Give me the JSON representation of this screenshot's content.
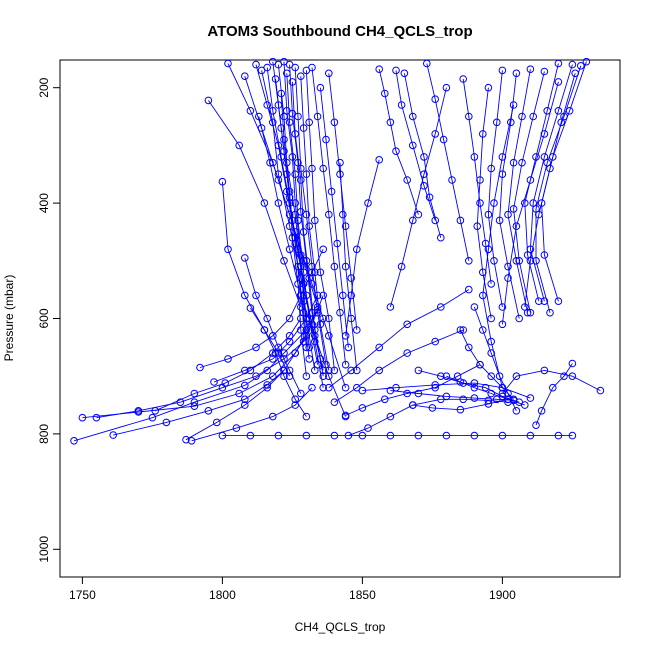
{
  "chart_data": {
    "type": "scatter",
    "title": "ATOM3 Southbound CH4_QCLS_trop",
    "xlabel": "CH4_QCLS_trop",
    "ylabel": "Pressure (mbar)",
    "xlim": [
      1742,
      1942
    ],
    "ylim": [
      1048,
      152
    ],
    "y_axis_reversed": true,
    "x_ticks": [
      1750,
      1800,
      1850,
      1900
    ],
    "y_ticks": [
      200,
      400,
      600,
      800,
      1000
    ],
    "color": "#0000ff",
    "marker": "open-circle",
    "connected": true,
    "legend": "none",
    "grid": false,
    "series": [
      {
        "x": [
          1747,
          1775,
          1790,
          1808,
          1816,
          1822,
          1830,
          1834
        ],
        "y": [
          812,
          772,
          745,
          716,
          690,
          660,
          620,
          585
        ]
      },
      {
        "x": [
          1750,
          1770,
          1790,
          1806,
          1818,
          1826,
          1832,
          1836
        ],
        "y": [
          772,
          762,
          752,
          730,
          700,
          660,
          610,
          560
        ]
      },
      {
        "x": [
          1755,
          1770,
          1785,
          1800,
          1812,
          1822,
          1829,
          1836
        ],
        "y": [
          772,
          760,
          745,
          720,
          700,
          670,
          640,
          600
        ]
      },
      {
        "x": [
          1761,
          1780,
          1795,
          1808,
          1816,
          1822
        ],
        "y": [
          802,
          780,
          760,
          740,
          715,
          690
        ]
      },
      {
        "x": [
          1776,
          1790,
          1801,
          1810,
          1818,
          1824,
          1828
        ],
        "y": [
          760,
          730,
          712,
          690,
          660,
          630,
          600
        ]
      },
      {
        "x": [
          1787,
          1798,
          1808,
          1816,
          1822,
          1826,
          1830
        ],
        "y": [
          810,
          780,
          750,
          720,
          690,
          660,
          630
        ]
      },
      {
        "x": [
          1789,
          1805,
          1818,
          1826,
          1832
        ],
        "y": [
          812,
          790,
          770,
          750,
          720
        ]
      },
      {
        "x": [
          1792,
          1802,
          1812,
          1818,
          1824,
          1828,
          1832,
          1836
        ],
        "y": [
          685,
          670,
          650,
          630,
          600,
          560,
          520,
          480
        ]
      },
      {
        "x": [
          1795,
          1806,
          1815,
          1822,
          1828
        ],
        "y": [
          222,
          300,
          400,
          500,
          580
        ]
      },
      {
        "x": [
          1797,
          1808,
          1818,
          1824,
          1830,
          1834
        ],
        "y": [
          710,
          690,
          670,
          640,
          600,
          560
        ]
      },
      {
        "x": [
          1800,
          1802,
          1808,
          1815,
          1820,
          1824
        ],
        "y": [
          363,
          480,
          560,
          620,
          660,
          700
        ]
      },
      {
        "x": [
          1802,
          1810,
          1818,
          1824,
          1829,
          1834
        ],
        "y": [
          158,
          240,
          330,
          420,
          500,
          580
        ]
      },
      {
        "x": [
          1808,
          1812,
          1816,
          1820,
          1824,
          1828
        ],
        "y": [
          495,
          560,
          600,
          650,
          690,
          730
        ]
      },
      {
        "x": [
          1810,
          1815,
          1819,
          1822,
          1826,
          1830
        ],
        "y": [
          582,
          620,
          660,
          700,
          740,
          770
        ]
      },
      {
        "x": [
          1812,
          1816,
          1820,
          1823,
          1826,
          1829,
          1832
        ],
        "y": [
          160,
          230,
          300,
          380,
          460,
          540,
          610
        ]
      },
      {
        "x": [
          1814,
          1818,
          1820,
          1824,
          1828,
          1832,
          1836
        ],
        "y": [
          170,
          260,
          350,
          440,
          530,
          610,
          690
        ]
      },
      {
        "x": [
          1816,
          1818,
          1821,
          1824,
          1827,
          1830,
          1833,
          1836
        ],
        "y": [
          165,
          240,
          320,
          400,
          480,
          560,
          640,
          720
        ]
      },
      {
        "x": [
          1818,
          1820,
          1822,
          1824,
          1826,
          1828,
          1830
        ],
        "y": [
          155,
          230,
          310,
          390,
          470,
          560,
          650
        ]
      },
      {
        "x": [
          1819,
          1821,
          1823,
          1825,
          1827,
          1829,
          1831
        ],
        "y": [
          185,
          270,
          350,
          430,
          510,
          590,
          670
        ]
      },
      {
        "x": [
          1820,
          1822,
          1823,
          1826,
          1828,
          1830,
          1833
        ],
        "y": [
          160,
          250,
          330,
          420,
          510,
          600,
          690
        ]
      },
      {
        "x": [
          1821,
          1822,
          1824,
          1825,
          1827,
          1828,
          1830
        ],
        "y": [
          210,
          290,
          380,
          460,
          540,
          620,
          700
        ]
      },
      {
        "x": [
          1822,
          1823,
          1825,
          1826,
          1828,
          1829,
          1831
        ],
        "y": [
          155,
          240,
          320,
          400,
          490,
          570,
          650
        ]
      },
      {
        "x": [
          1823,
          1824,
          1826,
          1827,
          1829,
          1831,
          1834
        ],
        "y": [
          175,
          260,
          350,
          430,
          520,
          600,
          680
        ]
      },
      {
        "x": [
          1824,
          1825,
          1827,
          1828,
          1830,
          1832,
          1835
        ],
        "y": [
          160,
          245,
          330,
          415,
          500,
          590,
          670
        ]
      },
      {
        "x": [
          1825,
          1826,
          1828,
          1829,
          1831,
          1833,
          1836
        ],
        "y": [
          190,
          280,
          360,
          450,
          530,
          620,
          700
        ]
      },
      {
        "x": [
          1826,
          1827,
          1828,
          1830,
          1832,
          1834,
          1837
        ],
        "y": [
          165,
          250,
          340,
          420,
          510,
          590,
          680
        ]
      },
      {
        "x": [
          1828,
          1829,
          1830,
          1831,
          1833,
          1835,
          1838
        ],
        "y": [
          180,
          270,
          350,
          440,
          520,
          610,
          690
        ]
      },
      {
        "x": [
          1830,
          1831,
          1832,
          1833,
          1835,
          1838,
          1840
        ],
        "y": [
          170,
          260,
          340,
          430,
          520,
          600,
          690
        ]
      },
      {
        "x": [
          1832,
          1834,
          1836,
          1838,
          1840,
          1842,
          1844
        ],
        "y": [
          165,
          250,
          340,
          420,
          510,
          590,
          680
        ]
      },
      {
        "x": [
          1835,
          1837,
          1839,
          1841,
          1843,
          1845
        ],
        "y": [
          200,
          290,
          380,
          470,
          560,
          650
        ]
      },
      {
        "x": [
          1838,
          1840,
          1842,
          1844,
          1846,
          1848
        ],
        "y": [
          175,
          260,
          350,
          440,
          530,
          620
        ]
      },
      {
        "x": [
          1842,
          1843,
          1844,
          1846,
          1848
        ],
        "y": [
          330,
          420,
          510,
          600,
          690
        ]
      },
      {
        "x": [
          1813,
          1817,
          1820,
          1824,
          1828,
          1833,
          1838,
          1844
        ],
        "y": [
          250,
          330,
          400,
          480,
          560,
          630,
          700,
          770
        ]
      },
      {
        "x": [
          1808,
          1814,
          1820,
          1826,
          1832,
          1838,
          1844
        ],
        "y": [
          180,
          270,
          360,
          450,
          540,
          630,
          720
        ]
      },
      {
        "x": [
          1856,
          1858,
          1860,
          1862,
          1866,
          1870
        ],
        "y": [
          168,
          210,
          260,
          310,
          360,
          420
        ]
      },
      {
        "x": [
          1856,
          1852,
          1848,
          1846,
          1844
        ],
        "y": [
          325,
          400,
          480,
          560,
          630
        ]
      },
      {
        "x": [
          1862,
          1864,
          1868,
          1872,
          1876
        ],
        "y": [
          170,
          230,
          300,
          370,
          430
        ]
      },
      {
        "x": [
          1865,
          1868,
          1872,
          1874,
          1878
        ],
        "y": [
          175,
          250,
          320,
          390,
          460
        ]
      },
      {
        "x": [
          1873,
          1876,
          1879,
          1882,
          1885,
          1888
        ],
        "y": [
          158,
          220,
          290,
          360,
          430,
          500
        ]
      },
      {
        "x": [
          1880,
          1876,
          1872,
          1868,
          1864,
          1860
        ],
        "y": [
          200,
          280,
          350,
          430,
          510,
          580
        ]
      },
      {
        "x": [
          1886,
          1888,
          1890,
          1892,
          1894,
          1896
        ],
        "y": [
          185,
          250,
          320,
          400,
          470,
          540
        ]
      },
      {
        "x": [
          1895,
          1893,
          1892,
          1891,
          1893,
          1896
        ],
        "y": [
          200,
          280,
          360,
          440,
          520,
          600
        ]
      },
      {
        "x": [
          1900,
          1898,
          1896,
          1895,
          1897,
          1900
        ],
        "y": [
          170,
          260,
          340,
          420,
          500,
          580
        ]
      },
      {
        "x": [
          1905,
          1903,
          1900,
          1899,
          1902,
          1906
        ],
        "y": [
          175,
          260,
          350,
          430,
          510,
          600
        ]
      },
      {
        "x": [
          1910,
          1907,
          1904,
          1902,
          1905,
          1909
        ],
        "y": [
          168,
          250,
          330,
          420,
          500,
          590
        ]
      },
      {
        "x": [
          1915,
          1911,
          1907,
          1904,
          1906,
          1910
        ],
        "y": [
          172,
          250,
          330,
          410,
          500,
          590
        ]
      },
      {
        "x": [
          1920,
          1916,
          1912,
          1908,
          1909,
          1913
        ],
        "y": [
          158,
          240,
          320,
          400,
          490,
          570
        ]
      },
      {
        "x": [
          1925,
          1920,
          1915,
          1911,
          1910,
          1915
        ],
        "y": [
          160,
          240,
          320,
          400,
          480,
          570
        ]
      },
      {
        "x": [
          1928,
          1922,
          1916,
          1912,
          1912,
          1917
        ],
        "y": [
          162,
          250,
          330,
          410,
          500,
          590
        ]
      },
      {
        "x": [
          1930,
          1924,
          1918,
          1914,
          1915,
          1920
        ],
        "y": [
          155,
          240,
          320,
          400,
          490,
          570
        ]
      },
      {
        "x": [
          1926,
          1921,
          1917,
          1913,
          1910,
          1908
        ],
        "y": [
          175,
          260,
          340,
          420,
          500,
          580
        ]
      },
      {
        "x": [
          1920,
          1915,
          1910,
          1905,
          1902,
          1900
        ],
        "y": [
          190,
          280,
          360,
          440,
          530,
          610
        ]
      },
      {
        "x": [
          1904,
          1900,
          1897,
          1895,
          1893,
          1896,
          1900
        ],
        "y": [
          230,
          320,
          400,
          480,
          560,
          640,
          720
        ]
      },
      {
        "x": [
          1890,
          1893,
          1896,
          1899,
          1902,
          1905
        ],
        "y": [
          580,
          620,
          660,
          700,
          730,
          760
        ]
      },
      {
        "x": [
          1885,
          1888,
          1892,
          1896,
          1900,
          1904
        ],
        "y": [
          620,
          650,
          680,
          700,
          720,
          740
        ]
      },
      {
        "x": [
          1880,
          1885,
          1890,
          1896,
          1902,
          1908
        ],
        "y": [
          700,
          710,
          720,
          730,
          740,
          750
        ]
      },
      {
        "x": [
          1870,
          1878,
          1886,
          1894,
          1900,
          1906
        ],
        "y": [
          690,
          700,
          712,
          720,
          735,
          745
        ]
      },
      {
        "x": [
          1860,
          1870,
          1880,
          1890,
          1898,
          1904
        ],
        "y": [
          725,
          730,
          735,
          738,
          740,
          742
        ]
      },
      {
        "x": [
          1850,
          1862,
          1876,
          1890,
          1900,
          1910
        ],
        "y": [
          725,
          720,
          715,
          712,
          720,
          738
        ]
      },
      {
        "x": [
          1935,
          1925,
          1915,
          1905,
          1900
        ],
        "y": [
          725,
          700,
          690,
          700,
          730
        ]
      },
      {
        "x": [
          1912,
          1914,
          1918,
          1922,
          1925
        ],
        "y": [
          785,
          760,
          720,
          700,
          678
        ]
      },
      {
        "x": [
          1868,
          1875,
          1885,
          1895,
          1902
        ],
        "y": [
          750,
          755,
          758,
          748,
          740
        ]
      },
      {
        "x": [
          1800,
          1810,
          1820,
          1830,
          1840,
          1850,
          1860,
          1870,
          1880,
          1890,
          1900,
          1910,
          1920,
          1925
        ],
        "y": [
          803,
          803,
          803,
          803,
          803,
          803,
          803,
          803,
          803,
          803,
          803,
          803,
          803,
          803
        ]
      },
      {
        "x": [
          1845,
          1852,
          1860,
          1868,
          1878,
          1886,
          1895,
          1902
        ],
        "y": [
          803,
          790,
          770,
          750,
          740,
          740,
          742,
          745
        ]
      },
      {
        "x": [
          1844,
          1850,
          1858,
          1866,
          1876,
          1884,
          1892
        ],
        "y": [
          768,
          755,
          740,
          730,
          720,
          700,
          680
        ]
      },
      {
        "x": [
          1840,
          1848,
          1856,
          1866,
          1876,
          1886
        ],
        "y": [
          745,
          720,
          690,
          660,
          640,
          620
        ]
      },
      {
        "x": [
          1838,
          1846,
          1856,
          1866,
          1878,
          1888
        ],
        "y": [
          720,
          690,
          650,
          610,
          580,
          550
        ]
      }
    ]
  }
}
